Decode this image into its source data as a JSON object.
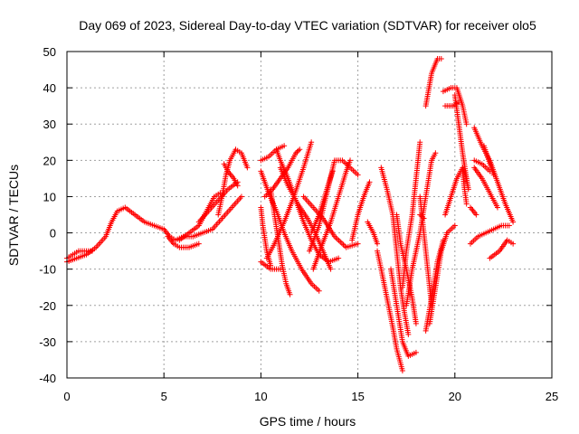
{
  "chart_data": {
    "type": "scatter",
    "title": "Day 069 of 2023, Sidereal Day-to-day VTEC variation (SDTVAR) for receiver olo5",
    "xlabel": "GPS time / hours",
    "ylabel": "SDTVAR / TECUs",
    "xlim": [
      0,
      25
    ],
    "ylim": [
      -40,
      50
    ],
    "xticks": [
      0,
      5,
      10,
      15,
      20,
      25
    ],
    "yticks": [
      -40,
      -30,
      -20,
      -10,
      0,
      10,
      20,
      30,
      40,
      50
    ],
    "xtick_labels": [
      "0",
      "5",
      "10",
      "15",
      "20",
      "25"
    ],
    "ytick_labels": [
      "-40",
      "-30",
      "-20",
      "-10",
      "0",
      "10",
      "20",
      "30",
      "40",
      "50"
    ],
    "grid": true,
    "marker": "+",
    "color": "#ff0000",
    "series": [
      {
        "points": [
          [
            0.0,
            -8
          ],
          [
            0.5,
            -7
          ],
          [
            1.0,
            -6
          ],
          [
            1.5,
            -4
          ],
          [
            2.0,
            -1
          ],
          [
            2.3,
            3
          ],
          [
            2.6,
            6
          ],
          [
            3.0,
            7
          ],
          [
            3.5,
            5
          ],
          [
            4.0,
            3
          ],
          [
            4.5,
            2
          ],
          [
            5.0,
            1
          ],
          [
            5.3,
            -1
          ],
          [
            5.6,
            -2
          ],
          [
            6.0,
            -1
          ],
          [
            6.5,
            -1
          ],
          [
            7.0,
            0
          ],
          [
            7.5,
            1
          ],
          [
            8.0,
            4
          ],
          [
            8.5,
            7
          ],
          [
            9.0,
            10
          ]
        ]
      },
      {
        "points": [
          [
            0.0,
            -7
          ],
          [
            0.3,
            -6
          ],
          [
            0.6,
            -5
          ],
          [
            1.0,
            -5
          ],
          [
            1.3,
            -5
          ]
        ]
      },
      {
        "points": [
          [
            5.2,
            -1
          ],
          [
            5.5,
            -3
          ],
          [
            5.8,
            -4
          ],
          [
            6.3,
            -4
          ],
          [
            6.8,
            -3
          ]
        ]
      },
      {
        "points": [
          [
            5.8,
            -2
          ],
          [
            6.3,
            0
          ],
          [
            6.8,
            2
          ],
          [
            7.2,
            6
          ],
          [
            7.6,
            10
          ],
          [
            7.9,
            11
          ]
        ]
      },
      {
        "points": [
          [
            6.8,
            3
          ],
          [
            7.3,
            6
          ],
          [
            7.8,
            9
          ],
          [
            8.3,
            12
          ],
          [
            8.8,
            14
          ]
        ]
      },
      {
        "points": [
          [
            7.8,
            5
          ],
          [
            8.0,
            10
          ],
          [
            8.2,
            16
          ],
          [
            8.4,
            20
          ],
          [
            8.7,
            23
          ],
          [
            9.0,
            22
          ],
          [
            9.3,
            18
          ]
        ]
      },
      {
        "points": [
          [
            8.1,
            19
          ],
          [
            8.3,
            17
          ],
          [
            8.6,
            15
          ],
          [
            8.8,
            13
          ]
        ]
      },
      {
        "points": [
          [
            10.0,
            20
          ],
          [
            10.4,
            21
          ],
          [
            10.8,
            23
          ],
          [
            11.2,
            24
          ]
        ]
      },
      {
        "points": [
          [
            10.0,
            7
          ],
          [
            10.1,
            2
          ],
          [
            10.3,
            -5
          ],
          [
            10.5,
            -9
          ]
        ]
      },
      {
        "points": [
          [
            10.0,
            -8
          ],
          [
            10.5,
            -10
          ],
          [
            11.0,
            -10
          ]
        ]
      },
      {
        "points": [
          [
            10.3,
            -7
          ],
          [
            10.7,
            -3
          ],
          [
            11.2,
            3
          ],
          [
            11.7,
            10
          ],
          [
            12.2,
            18
          ],
          [
            12.6,
            25
          ]
        ]
      },
      {
        "points": [
          [
            10.0,
            17
          ],
          [
            10.4,
            11
          ],
          [
            10.8,
            6
          ],
          [
            11.2,
            0
          ],
          [
            11.6,
            -5
          ],
          [
            12.1,
            -10
          ],
          [
            12.6,
            -14
          ],
          [
            13.0,
            -16
          ]
        ]
      },
      {
        "points": [
          [
            10.2,
            10
          ],
          [
            10.6,
            12
          ],
          [
            11.0,
            15
          ],
          [
            11.4,
            18
          ],
          [
            11.8,
            22
          ],
          [
            12.0,
            23
          ]
        ]
      },
      {
        "points": [
          [
            10.5,
            12
          ],
          [
            10.7,
            5
          ],
          [
            10.9,
            -2
          ],
          [
            11.1,
            -9
          ],
          [
            11.3,
            -14
          ],
          [
            11.5,
            -17
          ]
        ]
      },
      {
        "points": [
          [
            10.8,
            23
          ],
          [
            11.0,
            20
          ],
          [
            11.4,
            15
          ],
          [
            11.8,
            9
          ],
          [
            12.2,
            3
          ],
          [
            12.6,
            -2
          ],
          [
            13.0,
            -6
          ],
          [
            13.5,
            -8
          ],
          [
            14.0,
            -7
          ]
        ]
      },
      {
        "points": [
          [
            11.0,
            18
          ],
          [
            11.4,
            13
          ],
          [
            11.9,
            8
          ],
          [
            12.4,
            4
          ],
          [
            12.8,
            0
          ],
          [
            13.2,
            -5
          ],
          [
            13.6,
            -10
          ]
        ]
      },
      {
        "points": [
          [
            12.2,
            10
          ],
          [
            12.7,
            7
          ],
          [
            13.2,
            4
          ],
          [
            13.8,
            -1
          ],
          [
            14.4,
            -4
          ],
          [
            15.0,
            -3
          ]
        ]
      },
      {
        "points": [
          [
            12.5,
            -5
          ],
          [
            13.0,
            2
          ],
          [
            13.4,
            11
          ],
          [
            13.8,
            20
          ],
          [
            14.2,
            20
          ],
          [
            14.6,
            18
          ],
          [
            15.0,
            16
          ]
        ]
      },
      {
        "points": [
          [
            12.7,
            -10
          ],
          [
            13.1,
            -4
          ],
          [
            13.6,
            3
          ],
          [
            14.0,
            10
          ],
          [
            14.4,
            17
          ],
          [
            14.6,
            20
          ]
        ]
      },
      {
        "points": [
          [
            12.6,
            0
          ],
          [
            13.0,
            5
          ],
          [
            13.4,
            12
          ],
          [
            13.7,
            17
          ]
        ]
      },
      {
        "points": [
          [
            14.7,
            -2
          ],
          [
            15.0,
            5
          ],
          [
            15.3,
            10
          ],
          [
            15.6,
            14
          ]
        ]
      },
      {
        "points": [
          [
            15.5,
            3
          ],
          [
            15.8,
            0
          ],
          [
            16.0,
            -3
          ]
        ]
      },
      {
        "points": [
          [
            16.2,
            18
          ],
          [
            16.5,
            12
          ],
          [
            16.8,
            5
          ],
          [
            17.0,
            -5
          ],
          [
            17.2,
            -15
          ],
          [
            17.4,
            -22
          ],
          [
            17.6,
            -28
          ]
        ]
      },
      {
        "points": [
          [
            16.0,
            -5
          ],
          [
            16.2,
            -10
          ],
          [
            16.5,
            -18
          ],
          [
            16.8,
            -26
          ],
          [
            17.0,
            -32
          ],
          [
            17.3,
            -38
          ]
        ]
      },
      {
        "points": [
          [
            16.7,
            -10
          ],
          [
            17.0,
            -20
          ],
          [
            17.3,
            -30
          ],
          [
            17.6,
            -34
          ],
          [
            18.0,
            -33
          ]
        ]
      },
      {
        "points": [
          [
            17.0,
            5
          ],
          [
            17.2,
            -3
          ],
          [
            17.5,
            -10
          ],
          [
            17.8,
            -18
          ],
          [
            18.0,
            -25
          ]
        ]
      },
      {
        "points": [
          [
            17.5,
            -20
          ],
          [
            17.8,
            -10
          ],
          [
            18.2,
            0
          ],
          [
            18.5,
            10
          ],
          [
            18.8,
            20
          ],
          [
            19.0,
            22
          ]
        ]
      },
      {
        "points": [
          [
            18.2,
            25
          ],
          [
            18.0,
            15
          ],
          [
            17.8,
            5
          ],
          [
            17.5,
            -5
          ],
          [
            17.3,
            -15
          ]
        ]
      },
      {
        "points": [
          [
            18.2,
            10
          ],
          [
            18.4,
            0
          ],
          [
            18.6,
            -10
          ],
          [
            18.8,
            -20
          ]
        ]
      },
      {
        "points": [
          [
            18.5,
            -27
          ],
          [
            18.8,
            -18
          ],
          [
            19.1,
            -8
          ],
          [
            19.4,
            -2
          ]
        ]
      },
      {
        "points": [
          [
            18.7,
            -25
          ],
          [
            19.0,
            -15
          ],
          [
            19.3,
            -5
          ],
          [
            19.6,
            0
          ],
          [
            20.0,
            2
          ]
        ]
      },
      {
        "points": [
          [
            18.2,
            5
          ],
          [
            18.4,
            4
          ]
        ]
      },
      {
        "points": [
          [
            18.5,
            35
          ],
          [
            18.8,
            44
          ],
          [
            19.1,
            48
          ],
          [
            19.3,
            48
          ]
        ]
      },
      {
        "points": [
          [
            19.5,
            35
          ],
          [
            19.9,
            35
          ],
          [
            20.2,
            36
          ]
        ]
      },
      {
        "points": [
          [
            19.4,
            39
          ],
          [
            19.8,
            40
          ],
          [
            20.1,
            40
          ],
          [
            20.4,
            35
          ],
          [
            20.6,
            30
          ]
        ]
      },
      {
        "points": [
          [
            20.0,
            38
          ],
          [
            20.2,
            30
          ],
          [
            20.4,
            22
          ],
          [
            20.6,
            15
          ]
        ]
      },
      {
        "points": [
          [
            19.5,
            5
          ],
          [
            19.8,
            10
          ],
          [
            20.1,
            15
          ],
          [
            20.4,
            18
          ],
          [
            20.6,
            15
          ],
          [
            20.7,
            12
          ]
        ]
      },
      {
        "points": [
          [
            20.4,
            17
          ],
          [
            20.5,
            12
          ],
          [
            20.6,
            8
          ]
        ]
      },
      {
        "points": [
          [
            20.8,
            7
          ],
          [
            21.1,
            5
          ]
        ]
      },
      {
        "points": [
          [
            20.8,
            -3
          ],
          [
            21.2,
            -1
          ],
          [
            21.6,
            0
          ],
          [
            22.0,
            1
          ],
          [
            22.4,
            2
          ],
          [
            22.8,
            2
          ]
        ]
      },
      {
        "points": [
          [
            21.0,
            29
          ],
          [
            21.4,
            24
          ],
          [
            21.8,
            20
          ],
          [
            22.2,
            14
          ],
          [
            22.6,
            8
          ],
          [
            23.0,
            3
          ]
        ]
      },
      {
        "points": [
          [
            21.0,
            20
          ],
          [
            21.4,
            19
          ],
          [
            21.8,
            17
          ]
        ]
      },
      {
        "points": [
          [
            21.0,
            18
          ],
          [
            21.4,
            15
          ],
          [
            21.8,
            11
          ],
          [
            22.2,
            7
          ]
        ]
      },
      {
        "points": [
          [
            21.5,
            24
          ],
          [
            22.0,
            16
          ]
        ]
      },
      {
        "points": [
          [
            21.8,
            -7
          ],
          [
            22.3,
            -5
          ],
          [
            22.7,
            -2
          ],
          [
            23.0,
            -3
          ]
        ]
      }
    ]
  }
}
